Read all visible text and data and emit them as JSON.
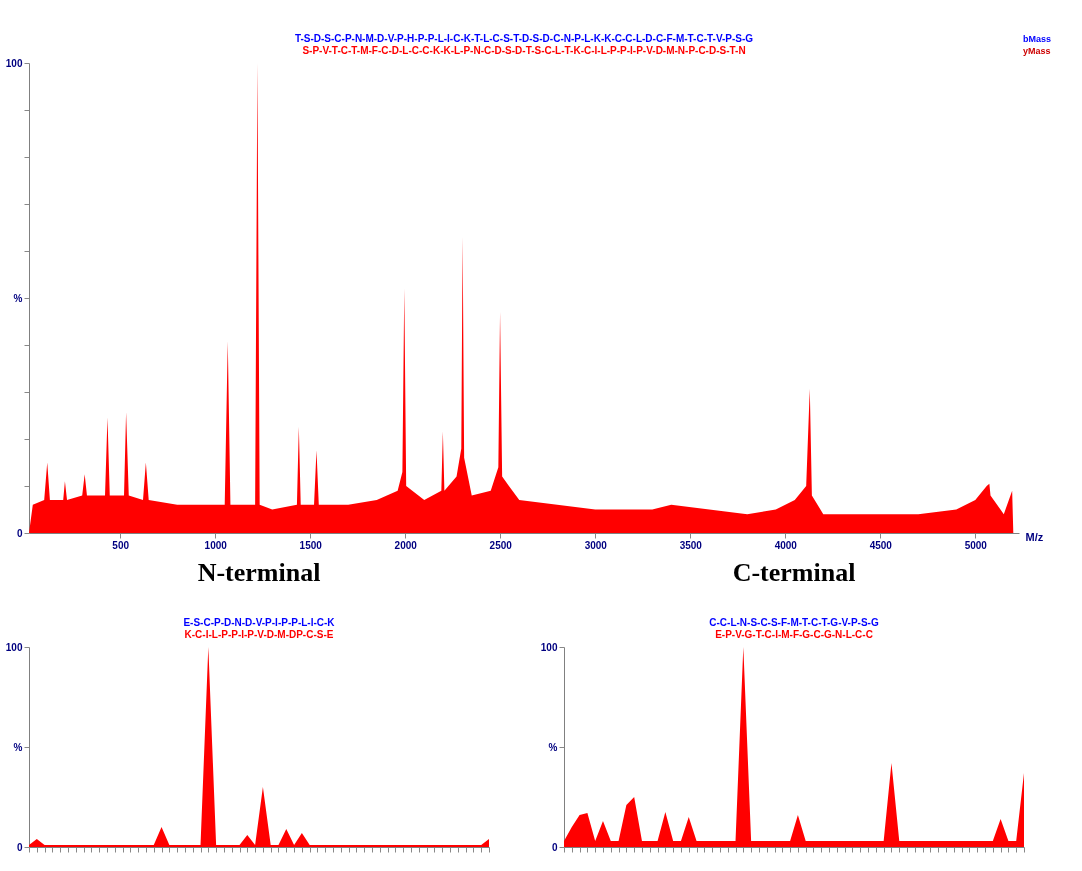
{
  "chart_data": [
    {
      "type": "area",
      "xlabel": "M/z",
      "annotations": [
        "T-S-D-S-C-P-N-M-D-V-P-H-P-P-L-I-C-K-T-L-C-S-T-D-S-D-C-N-P-L-K-K-C-C-L-D-C-F-M-T-C-T-V-P-S-G",
        "S-P-V-T-C-T-M-F-C-D-L-C-C-K-K-L-P-N-C-D-S-D-T-S-C-L-T-K-C-I-L-P-P-I-P-V-D-M-N-P-C-D-S-T-N",
        "bMass",
        "yMass"
      ],
      "x": [
        20,
        40,
        100,
        116,
        130,
        200,
        209,
        220,
        300,
        313,
        325,
        420,
        433,
        445,
        520,
        531,
        545,
        620,
        635,
        650,
        800,
        900,
        1050,
        1066,
        1080,
        1150,
        1210,
        1222,
        1234,
        1300,
        1430,
        1440,
        1450,
        1520,
        1533,
        1545,
        1700,
        1850,
        1960,
        1985,
        1995,
        2005,
        2100,
        2190,
        2198,
        2206,
        2270,
        2295,
        2302,
        2310,
        2350,
        2450,
        2490,
        2499,
        2510,
        2600,
        2800,
        3000,
        3300,
        3400,
        3600,
        3800,
        3950,
        4050,
        4110,
        4129,
        4140,
        4200,
        4500,
        4700,
        4900,
        5000,
        5060,
        5074,
        5080,
        5150,
        5194,
        5200
      ],
      "values": [
        0,
        6,
        7,
        15,
        7,
        7,
        11,
        7,
        8,
        12.5,
        8,
        8,
        24.6,
        8,
        8,
        25.7,
        8,
        7,
        15,
        7,
        6,
        6,
        6,
        40.8,
        6,
        6,
        6,
        100,
        6,
        5,
        6,
        22.6,
        6,
        6,
        17.6,
        6,
        6,
        7,
        9,
        13,
        52,
        10,
        7,
        9,
        21.6,
        9,
        12,
        18,
        63,
        16,
        8,
        9,
        14,
        47,
        12,
        7,
        6,
        5,
        5,
        6,
        5,
        4,
        5,
        7,
        10,
        30.7,
        8,
        4,
        4,
        4,
        5,
        7,
        10,
        10.5,
        8,
        4,
        9,
        0
      ],
      "color": "#ff0000",
      "xlim": [
        20,
        5230
      ],
      "xticks": [
        500,
        1000,
        1500,
        2000,
        2500,
        3000,
        3500,
        4000,
        4500,
        5000
      ],
      "ylim": [
        0,
        100
      ],
      "yticks": [
        {
          "value": 0,
          "label": "0"
        },
        {
          "value": 10,
          "label": null
        },
        {
          "value": 20,
          "label": null
        },
        {
          "value": 30,
          "label": null
        },
        {
          "value": 40,
          "label": null
        },
        {
          "value": 50,
          "label": "%"
        },
        {
          "value": 60,
          "label": null
        },
        {
          "value": 70,
          "label": null
        },
        {
          "value": 80,
          "label": null
        },
        {
          "value": 90,
          "label": null
        },
        {
          "value": 100,
          "label": "100"
        }
      ],
      "grid": false
    },
    {
      "type": "area",
      "title": "N-terminal",
      "annotations": [
        "E-S-C-P-D-N-D-V-P-I-P-P-L-I-C-K",
        "K-C-I-L-P-P-I-P-V-D-M-DP-C-S-E"
      ],
      "categories": [
        null,
        null,
        null,
        null,
        null,
        null,
        null,
        null,
        null,
        null,
        null,
        null,
        null,
        null,
        null,
        null,
        null,
        null,
        null,
        null,
        null,
        null,
        null,
        null,
        null,
        null,
        null,
        null,
        null,
        null,
        null,
        null,
        null,
        null,
        null,
        null,
        null,
        null,
        null,
        null,
        null,
        null,
        null,
        null,
        null,
        null,
        null,
        null,
        null,
        null,
        null,
        null,
        null,
        null,
        null,
        null,
        null,
        null,
        null,
        null
      ],
      "values": [
        1,
        4,
        1,
        1,
        1,
        1,
        1,
        1,
        1,
        1,
        1,
        1,
        1,
        1,
        1,
        1,
        1,
        10,
        1,
        1,
        1,
        1,
        1,
        100,
        1,
        1,
        1,
        1,
        6,
        1,
        30,
        1,
        1,
        9,
        1,
        7,
        1,
        1,
        1,
        1,
        1,
        1,
        1,
        1,
        1,
        1,
        1,
        1,
        1,
        1,
        1,
        1,
        1,
        1,
        1,
        1,
        1,
        1,
        1,
        4
      ],
      "color": "#ff0000",
      "ylim": [
        0,
        100
      ],
      "yticks": [
        {
          "value": 0,
          "label": "0"
        },
        {
          "value": 50,
          "label": "%"
        },
        {
          "value": 100,
          "label": "100"
        }
      ],
      "grid": false
    },
    {
      "type": "area",
      "title": "C-terminal",
      "annotations": [
        "C-C-L-N-S-C-S-F-M-T-C-T-G-V-P-S-G",
        "E-P-V-G-T-C-I-M-F-G-C-G-N-L-C-C"
      ],
      "categories": [
        null,
        null,
        null,
        null,
        null,
        null,
        null,
        null,
        null,
        null,
        null,
        null,
        null,
        null,
        null,
        null,
        null,
        null,
        null,
        null,
        null,
        null,
        null,
        null,
        null,
        null,
        null,
        null,
        null,
        null,
        null,
        null,
        null,
        null,
        null,
        null,
        null,
        null,
        null,
        null,
        null,
        null,
        null,
        null,
        null,
        null,
        null,
        null,
        null,
        null,
        null,
        null,
        null,
        null,
        null,
        null,
        null,
        null,
        null,
        null
      ],
      "values": [
        3,
        10,
        16,
        17,
        3,
        13,
        3,
        3,
        21,
        25,
        3,
        3,
        3,
        17.5,
        3,
        3,
        15,
        3,
        3,
        3,
        3,
        3,
        3,
        100,
        3,
        3,
        3,
        3,
        3,
        3,
        16,
        3,
        3,
        3,
        3,
        3,
        3,
        3,
        3,
        3,
        3,
        3,
        42,
        3,
        3,
        3,
        3,
        3,
        3,
        3,
        3,
        3,
        3,
        3,
        3,
        3,
        14,
        3,
        3,
        37
      ],
      "color": "#ff0000",
      "ylim": [
        0,
        100
      ],
      "yticks": [
        {
          "value": 0,
          "label": "0"
        },
        {
          "value": 50,
          "label": "%"
        },
        {
          "value": 100,
          "label": "100"
        }
      ],
      "grid": false
    }
  ]
}
